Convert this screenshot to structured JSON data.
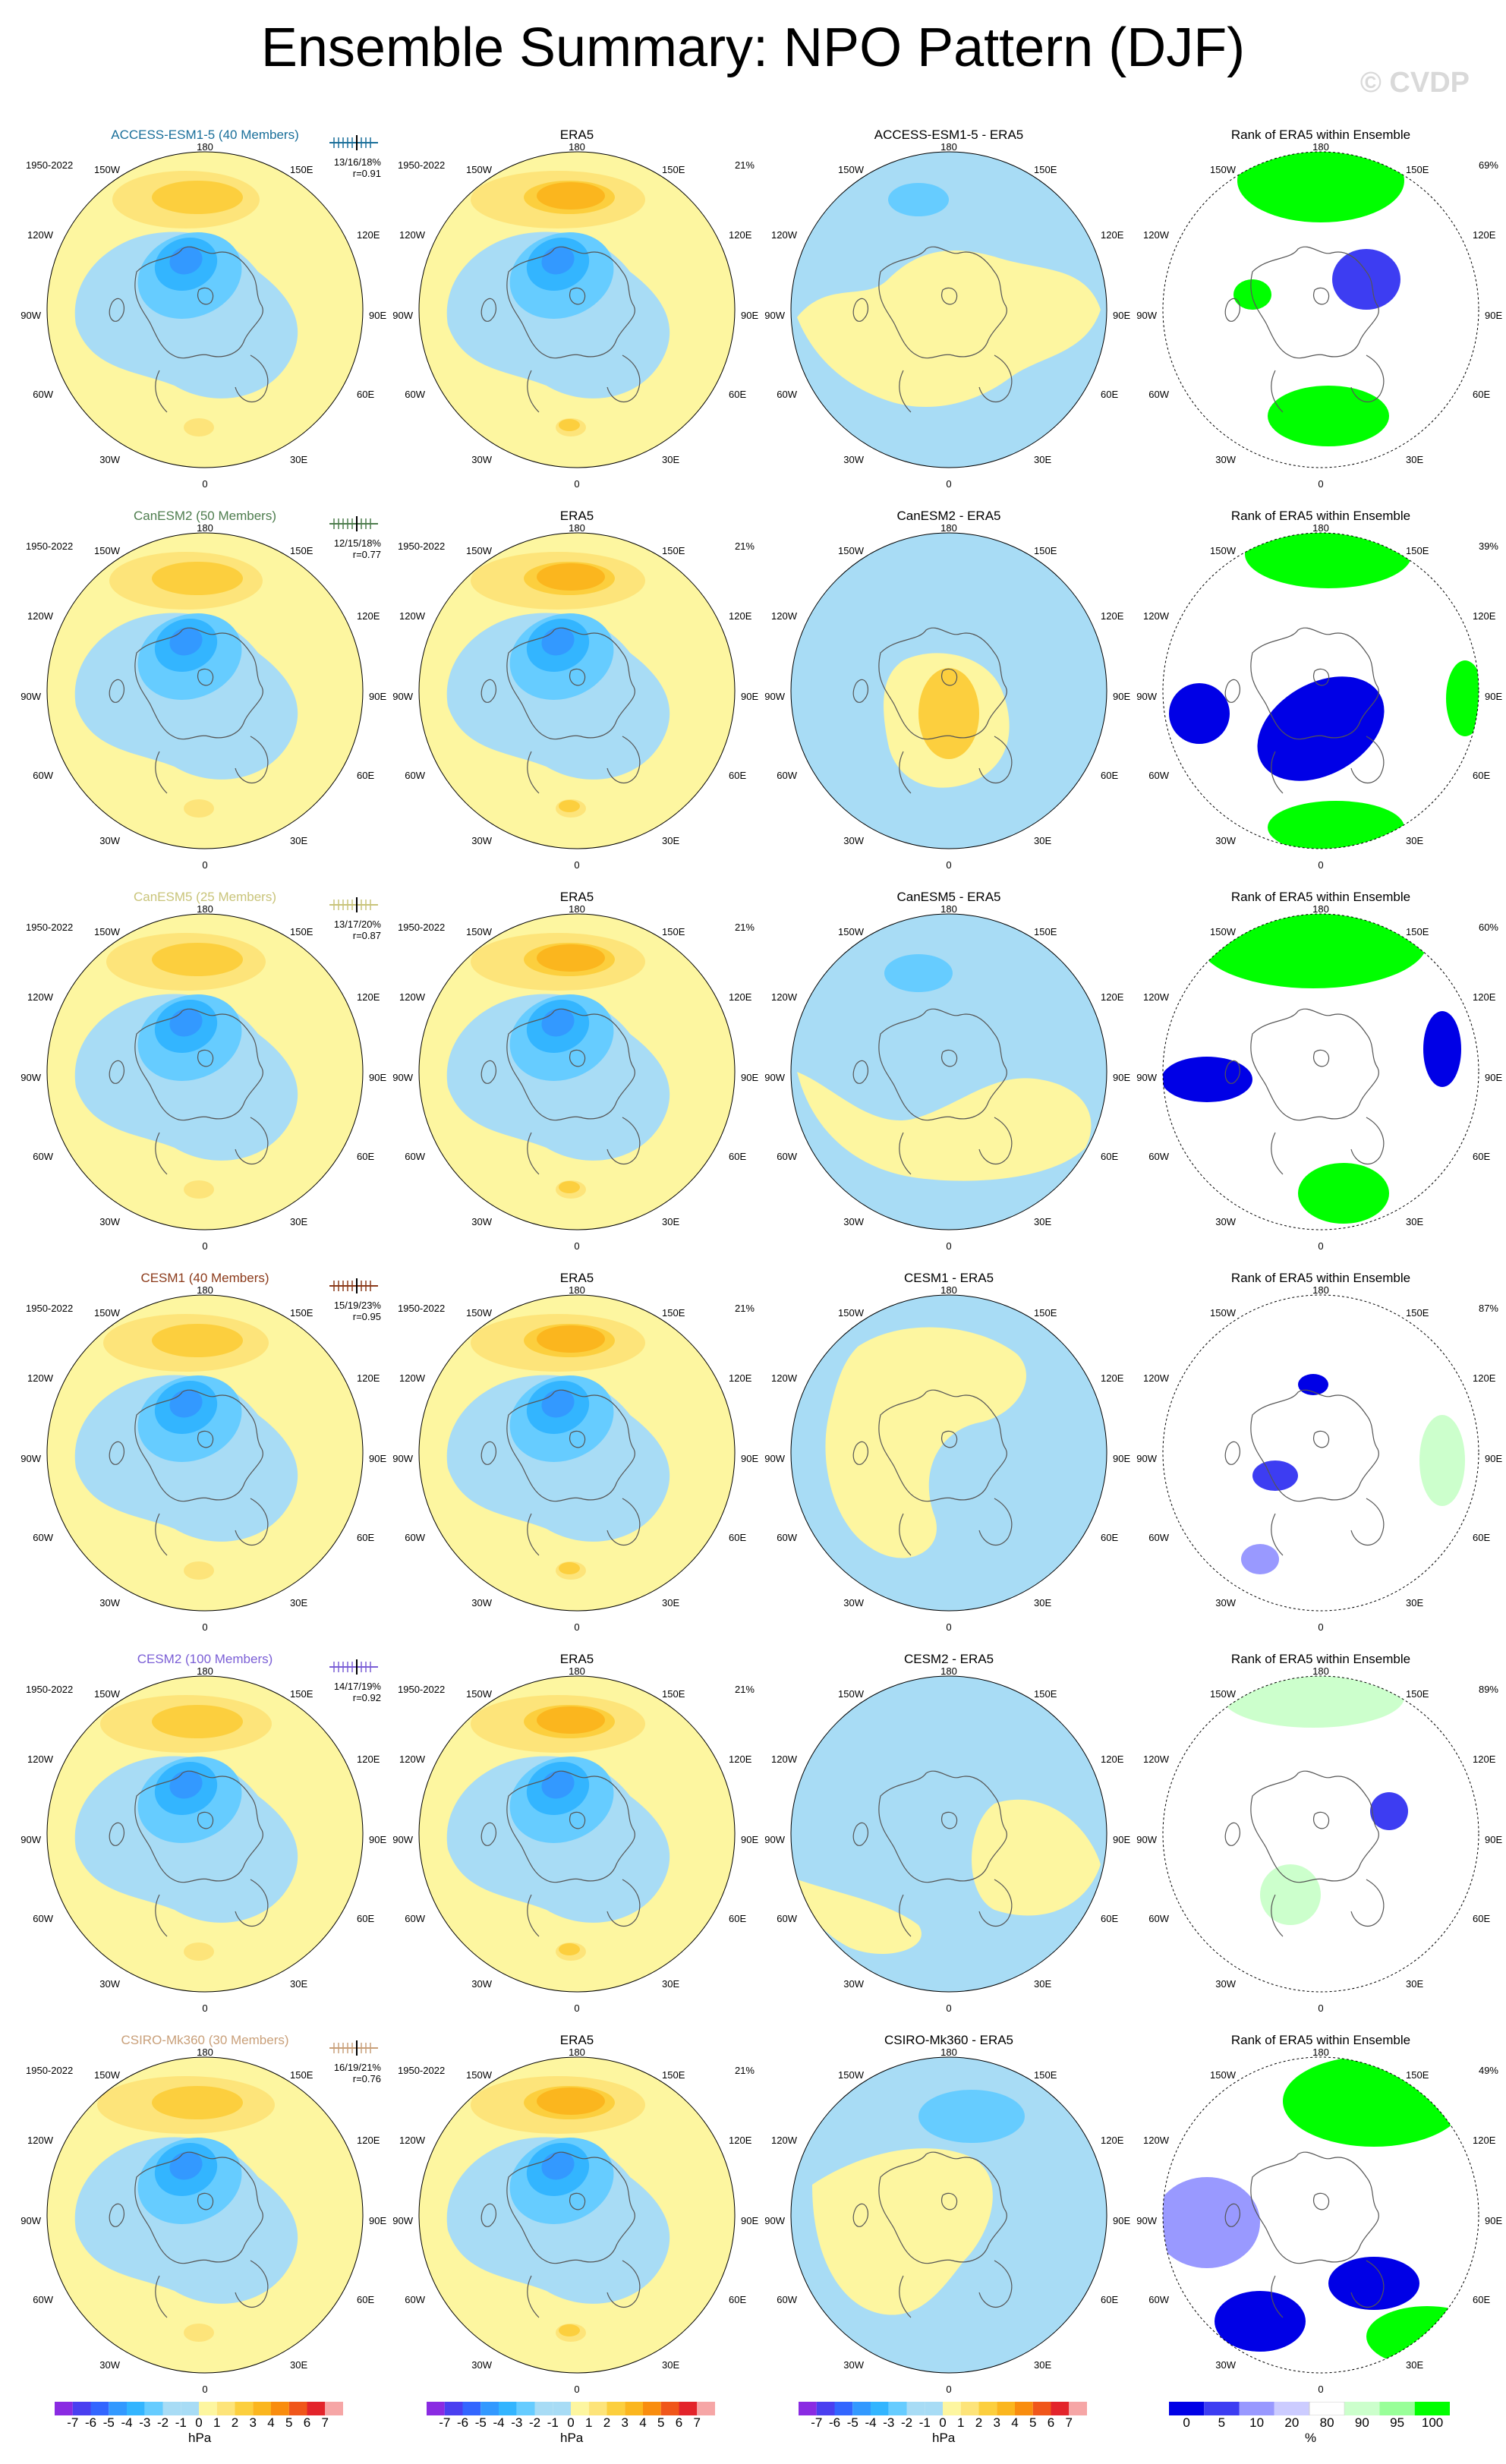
{
  "page_title": "Ensemble Summary: NPO Pattern (DJF)",
  "watermark": "© CVDP",
  "period": "1950-2022",
  "era5_title": "ERA5",
  "era5_pct": "21%",
  "rank_title": "Rank of ERA5 within Ensemble",
  "lon_labels": {
    "top": "180",
    "tr": "150E",
    "r1": "120E",
    "r2": "90E",
    "r3": "60E",
    "br": "30E",
    "bottom": "0",
    "bl": "30W",
    "l3": "60W",
    "l2": "90W",
    "l1": "120W",
    "tl": "150W"
  },
  "colors": {
    "neg7": "#8a2be2",
    "neg6": "#4a3ff0",
    "neg5": "#3366ff",
    "neg4": "#3399ff",
    "neg3": "#33b5ff",
    "neg2": "#66ccff",
    "neg1": "#a8dcf5",
    "pos1": "#fdf6a0",
    "pos2": "#fde47a",
    "pos3": "#fccf3e",
    "pos4": "#fbb61e",
    "pos5": "#f98d0e",
    "pos6": "#f0561a",
    "pos7": "#e3242b",
    "pos8": "#d11a3a",
    "pos9": "#f6a6a6",
    "rank_0": "#0000e6",
    "rank_5": "#3d3df2",
    "rank_10": "#9999ff",
    "rank_20": "#ccccff",
    "rank_80": "#ffffff",
    "rank_90": "#ccffcc",
    "rank_95": "#99ff99",
    "rank_100": "#00ff00",
    "land": "#555555"
  },
  "rows": [
    {
      "model": "ACCESS-ESM1-5 (40 Members)",
      "model_color": "#1a6f9a",
      "stats": "13/16/18%",
      "r": "r=0.91",
      "diff_title": "ACCESS-ESM1-5 - ERA5",
      "rank_pct": "69%"
    },
    {
      "model": "CanESM2 (50 Members)",
      "model_color": "#4e7d4e",
      "stats": "12/15/18%",
      "r": "r=0.77",
      "diff_title": "CanESM2 - ERA5",
      "rank_pct": "39%"
    },
    {
      "model": "CanESM5 (25 Members)",
      "model_color": "#c9c47a",
      "stats": "13/17/20%",
      "r": "r=0.87",
      "diff_title": "CanESM5 - ERA5",
      "rank_pct": "60%"
    },
    {
      "model": "CESM1 (40 Members)",
      "model_color": "#8b3a1a",
      "stats": "15/19/23%",
      "r": "r=0.95",
      "diff_title": "CESM1 - ERA5",
      "rank_pct": "87%"
    },
    {
      "model": "CESM2 (100 Members)",
      "model_color": "#7b5fd6",
      "stats": "14/17/19%",
      "r": "r=0.92",
      "diff_title": "CESM2 - ERA5",
      "rank_pct": "89%"
    },
    {
      "model": "CSIRO-Mk360 (30 Members)",
      "model_color": "#c9a07a",
      "stats": "16/19/21%",
      "r": "r=0.76",
      "diff_title": "CSIRO-Mk360 - ERA5",
      "rank_pct": "49%"
    }
  ],
  "colorbar_hpa": {
    "labels": [
      "-7",
      "-6",
      "-5",
      "-4",
      "-3",
      "-2",
      "-1",
      "0",
      "1",
      "2",
      "3",
      "4",
      "5",
      "6",
      "7"
    ],
    "unit": "hPa"
  },
  "colorbar_rank": {
    "labels": [
      "0",
      "5",
      "10",
      "20",
      "80",
      "90",
      "95",
      "100"
    ],
    "unit": "%"
  }
}
